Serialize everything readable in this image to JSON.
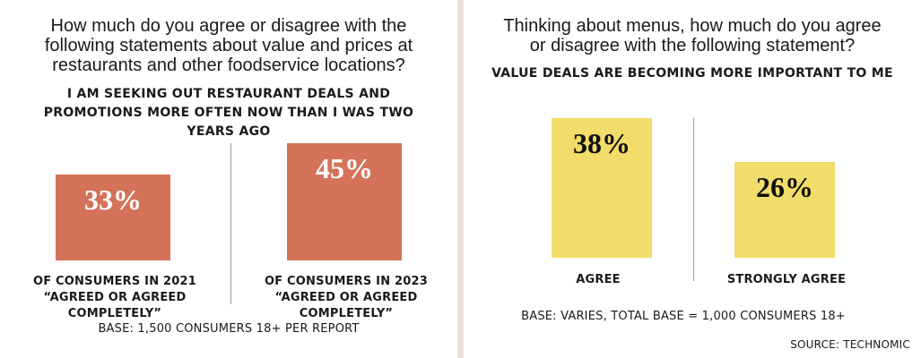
{
  "chart_data": [
    {
      "type": "bar",
      "title": "How much do you agree or disagree with the following statements about value and prices at restaurants and other foodservice locations?",
      "subtitle": "I AM SEEKING OUT RESTAURANT DEALS AND PROMOTIONS MORE OFTEN NOW THAN I WAS TWO YEARS AGO",
      "categories": [
        "OF CONSUMERS IN 2021 “AGREED OR AGREED COMPLETELY”",
        "OF CONSUMERS IN 2023 “AGREED OR AGREED COMPLETELY”"
      ],
      "values": [
        33,
        45
      ],
      "value_labels": [
        "33%",
        "45%"
      ],
      "bar_color": "#d4735a",
      "base": "BASE: 1,500 CONSUMERS 18+ PER REPORT",
      "ylim": [
        0,
        45
      ]
    },
    {
      "type": "bar",
      "title": "Thinking about menus, how much do you agree or disagree with the following statement?",
      "subtitle": "VALUE DEALS ARE BECOMING MORE IMPORTANT TO ME",
      "categories": [
        "AGREE",
        "STRONGLY AGREE"
      ],
      "values": [
        38,
        26
      ],
      "value_labels": [
        "38%",
        "26%"
      ],
      "bar_color": "#f2dc6a",
      "base": "BASE: VARIES, TOTAL BASE = 1,000 CONSUMERS 18+",
      "source": "SOURCE: TECHNOMIC",
      "ylim": [
        0,
        38
      ]
    }
  ],
  "colors": {
    "divider": "#e9e1d7",
    "separator": "#9a9a9a"
  }
}
